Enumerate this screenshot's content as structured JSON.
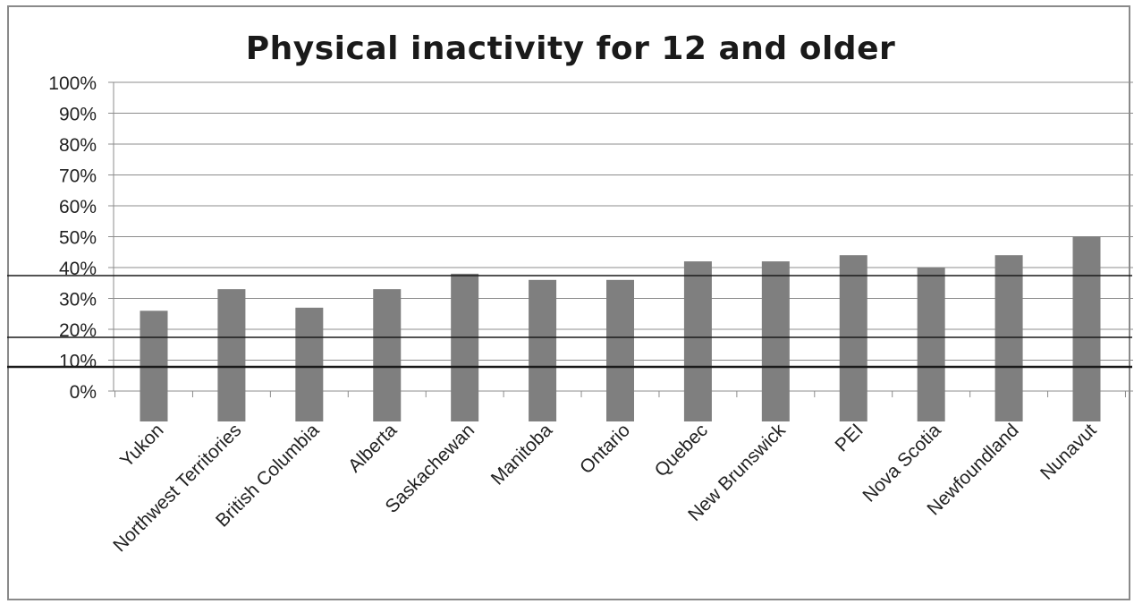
{
  "chart_data": {
    "type": "bar",
    "title": "Physical inactivity for 12 and older",
    "xlabel": "",
    "ylabel": "",
    "categories": [
      "Yukon",
      "Northwest Territories",
      "British Columbia",
      "Alberta",
      "Saskachewan",
      "Manitoba",
      "Ontario",
      "Quebec",
      "New Brunswick",
      "PEI",
      "Nova Scotia",
      "Newfoundland",
      "Nunavut"
    ],
    "values": [
      26,
      33,
      27,
      33,
      38,
      36,
      36,
      42,
      42,
      44,
      40,
      44,
      50
    ],
    "ylim": [
      0,
      100
    ],
    "yticks": [
      "0%",
      "10%",
      "20%",
      "30%",
      "40%",
      "50%",
      "60%",
      "70%",
      "80%",
      "90%",
      "100%"
    ],
    "grid": true,
    "legend": "none",
    "bar_color": "#7f7f7f"
  }
}
